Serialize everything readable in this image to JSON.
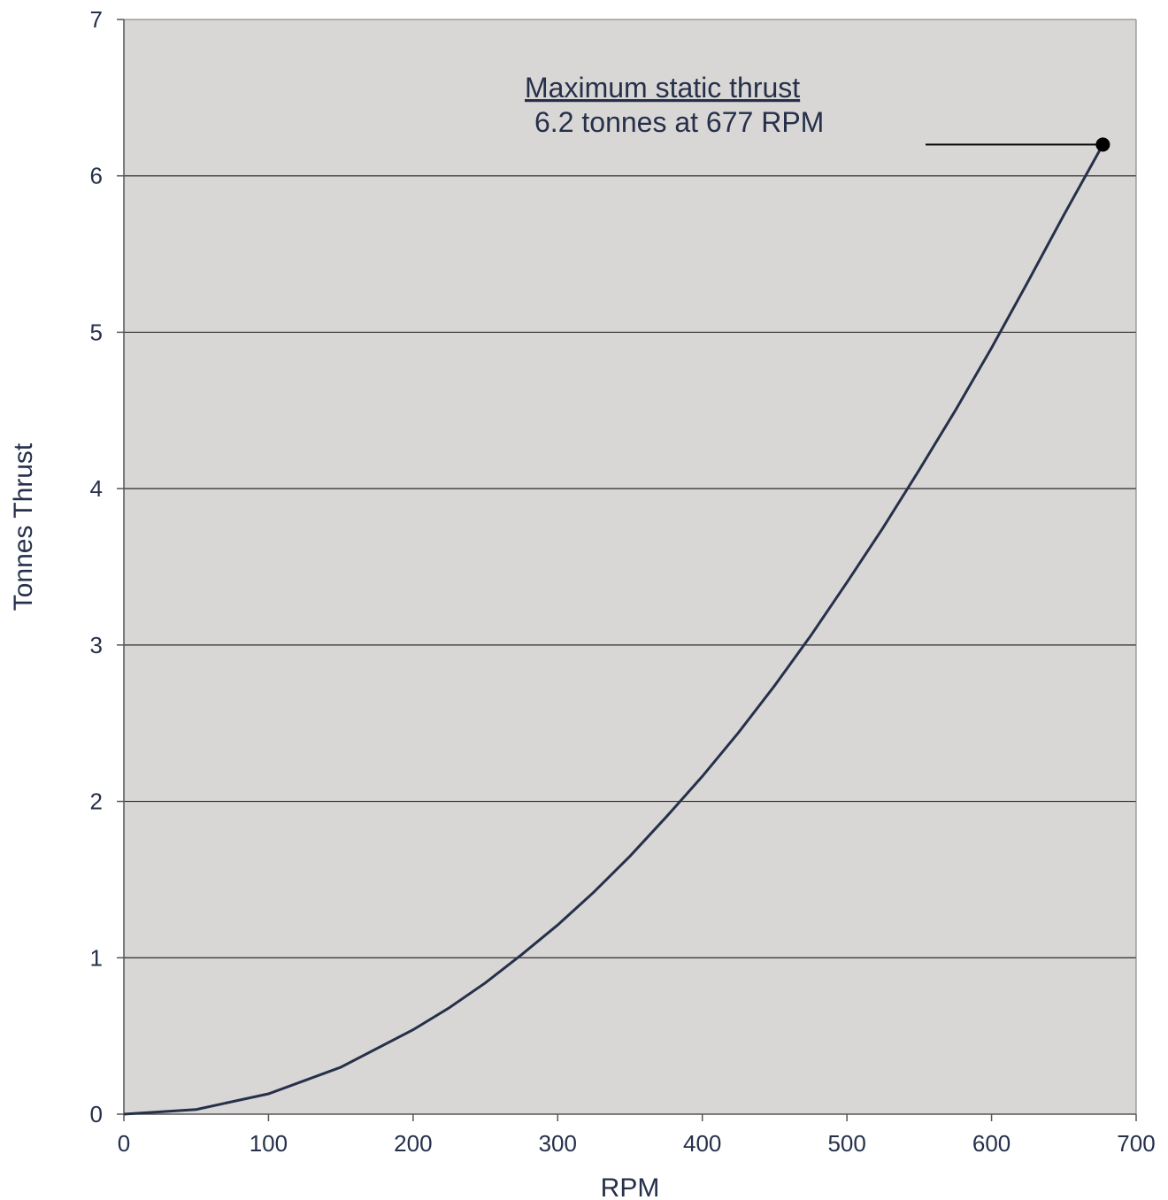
{
  "chart_data": {
    "type": "line",
    "title": "",
    "xlabel": "RPM",
    "ylabel": "Tonnes Thrust",
    "xlim": [
      0,
      700
    ],
    "ylim": [
      0,
      7
    ],
    "xticks": [
      0,
      100,
      200,
      300,
      400,
      500,
      600,
      700
    ],
    "yticks": [
      0,
      1,
      2,
      3,
      4,
      5,
      6,
      7
    ],
    "grid": "horizontal",
    "background_color": "#d9d7d6",
    "line_color": "#26304a",
    "series": [
      {
        "x": [
          0,
          50,
          100,
          150,
          200,
          225,
          250,
          275,
          300,
          325,
          350,
          375,
          400,
          425,
          450,
          475,
          500,
          525,
          550,
          575,
          600,
          625,
          650,
          677
        ],
        "values": [
          0,
          0.03,
          0.13,
          0.3,
          0.54,
          0.68,
          0.84,
          1.02,
          1.21,
          1.42,
          1.65,
          1.9,
          2.16,
          2.44,
          2.74,
          3.06,
          3.4,
          3.75,
          4.12,
          4.5,
          4.9,
          5.32,
          5.75,
          6.2
        ]
      }
    ],
    "annotation": {
      "title": "Maximum static thrust",
      "text": "6.2 tonnes at 677 RPM",
      "point": {
        "x": 677,
        "y": 6.2
      }
    }
  }
}
